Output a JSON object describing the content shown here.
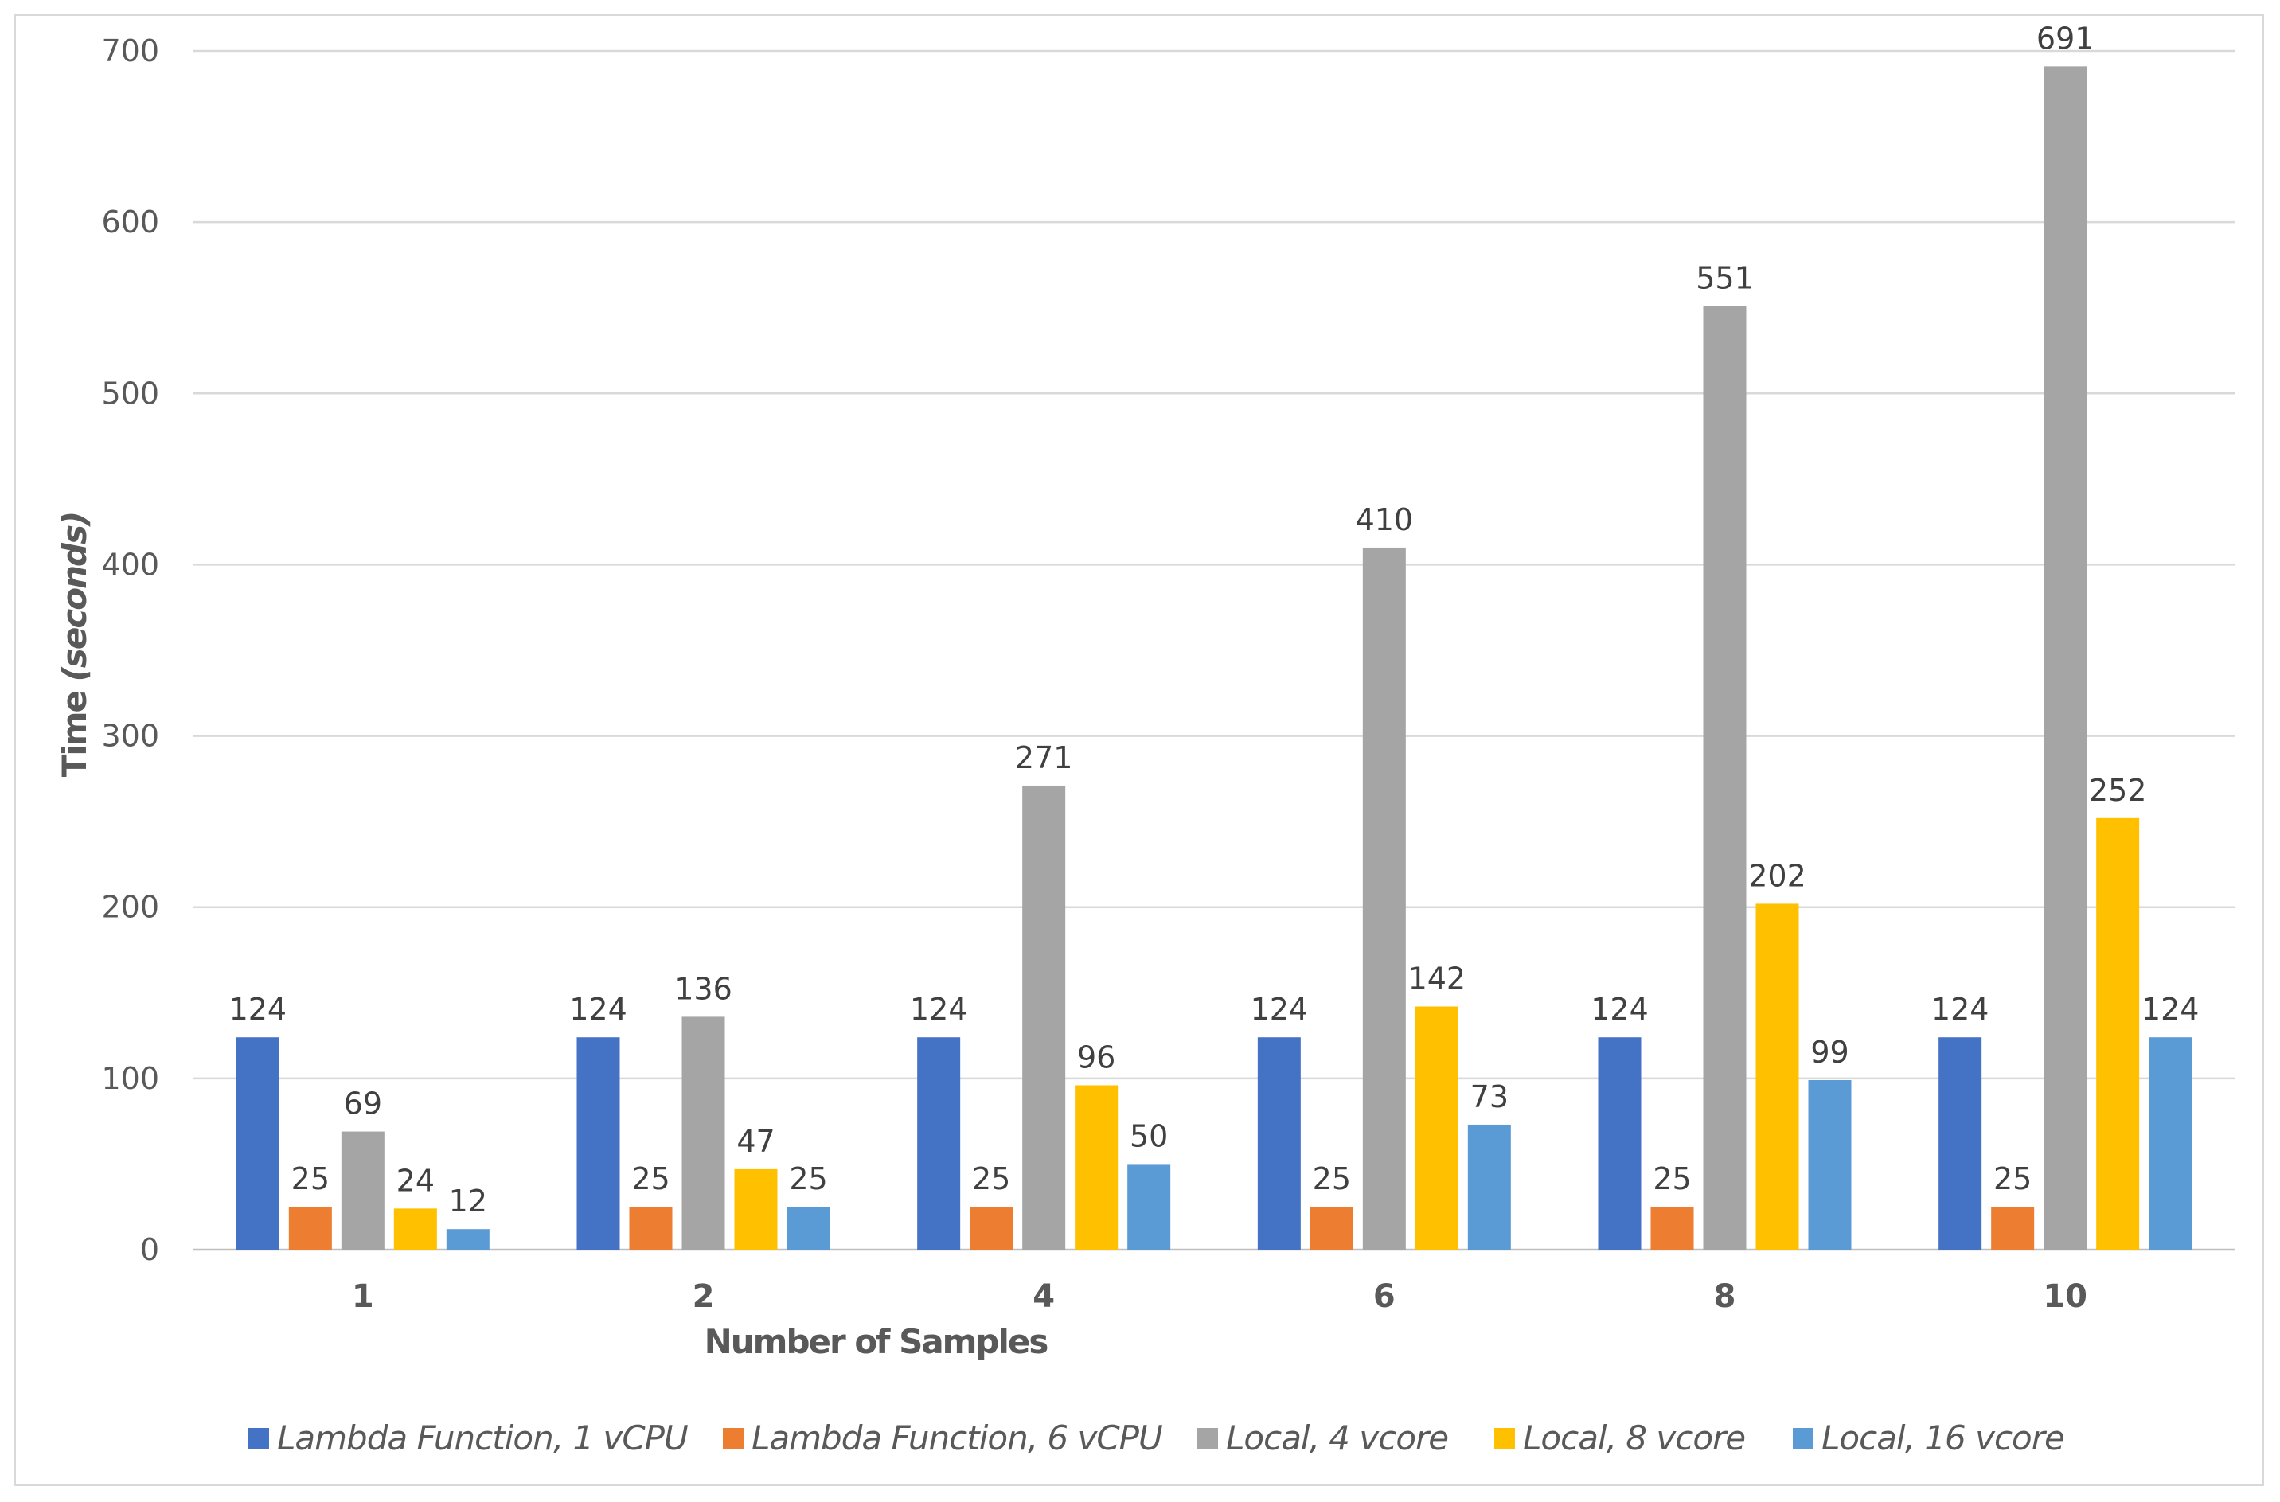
{
  "chart_data": {
    "type": "bar",
    "title": "",
    "xlabel": "Number of Samples",
    "ylabel": "Time",
    "ylabel_unit": "(seconds)",
    "ylim": [
      0,
      700
    ],
    "yticks": [
      0,
      100,
      200,
      300,
      400,
      500,
      600,
      700
    ],
    "grid": true,
    "legend_position": "bottom",
    "categories": [
      "1",
      "2",
      "4",
      "6",
      "8",
      "10"
    ],
    "series": [
      {
        "name": "Lambda Function, 1 vCPU",
        "color": "#4472c4",
        "values": [
          124,
          124,
          124,
          124,
          124,
          124
        ]
      },
      {
        "name": "Lambda Function, 6 vCPU",
        "color": "#ed7d31",
        "values": [
          25,
          25,
          25,
          25,
          25,
          25
        ]
      },
      {
        "name": "Local, 4 vcore",
        "color": "#a5a5a5",
        "values": [
          69,
          136,
          271,
          410,
          551,
          691
        ]
      },
      {
        "name": "Local, 8 vcore",
        "color": "#ffc000",
        "values": [
          24,
          47,
          96,
          142,
          202,
          252
        ]
      },
      {
        "name": "Local, 16 vcore",
        "color": "#5b9bd5",
        "values": [
          12,
          25,
          50,
          73,
          99,
          124
        ]
      }
    ]
  }
}
